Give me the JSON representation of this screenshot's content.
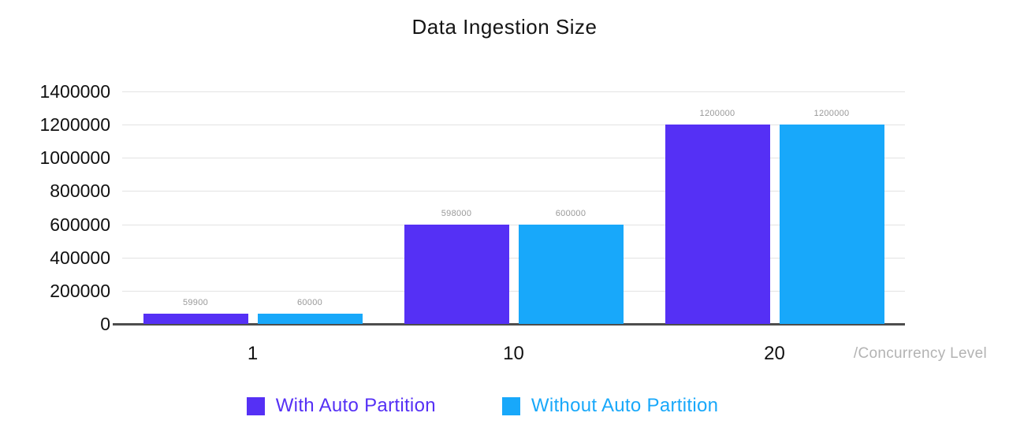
{
  "chart_data": {
    "type": "bar",
    "title": "Data Ingestion Size",
    "categories": [
      "1",
      "10",
      "20"
    ],
    "series": [
      {
        "name": "With Auto Partition",
        "color": "#5530F5",
        "values": [
          59900,
          598000,
          1200000
        ]
      },
      {
        "name": "Without Auto Partition",
        "color": "#18A8FA",
        "values": [
          60000,
          600000,
          1200000
        ]
      }
    ],
    "data_labels": [
      [
        "59900",
        "598000",
        "1200000"
      ],
      [
        "60000",
        "600000",
        "1200000"
      ]
    ],
    "xlabel": "/Concurrency Level",
    "ylabel": "",
    "ylim": [
      0,
      1400000
    ],
    "yticks": [
      "1400000",
      "1200000",
      "1000000",
      "800000",
      "600000",
      "400000",
      "200000",
      "0"
    ],
    "grid": true,
    "legend_position": "bottom"
  }
}
